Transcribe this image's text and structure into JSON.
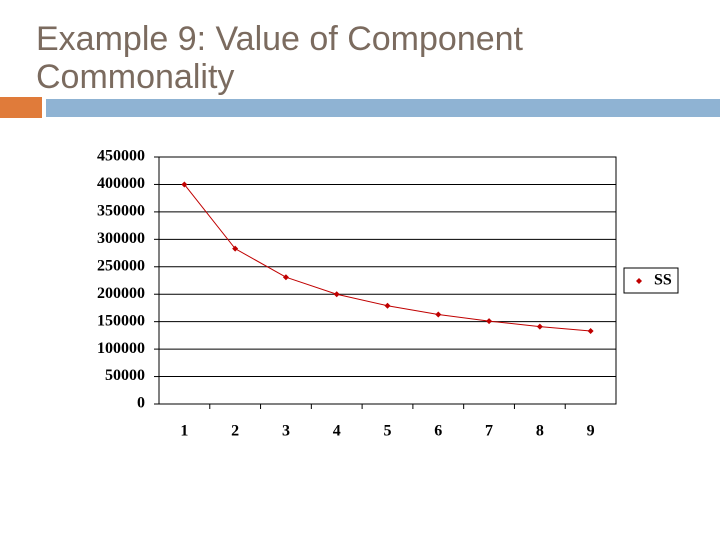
{
  "chart_data": {
    "type": "line",
    "title": "Example 9: Value of Component Commonality",
    "categories": [
      "1",
      "2",
      "3",
      "4",
      "5",
      "6",
      "7",
      "8",
      "9"
    ],
    "series": [
      {
        "name": "SS",
        "color": "#c00000",
        "values": [
          400000,
          283000,
          231000,
          200000,
          179000,
          163000,
          151000,
          141000,
          133000
        ]
      }
    ],
    "ylim": [
      0,
      450000
    ],
    "yticks": [
      0,
      50000,
      100000,
      150000,
      200000,
      250000,
      300000,
      350000,
      400000,
      450000
    ],
    "grid": true,
    "legend": "right"
  }
}
